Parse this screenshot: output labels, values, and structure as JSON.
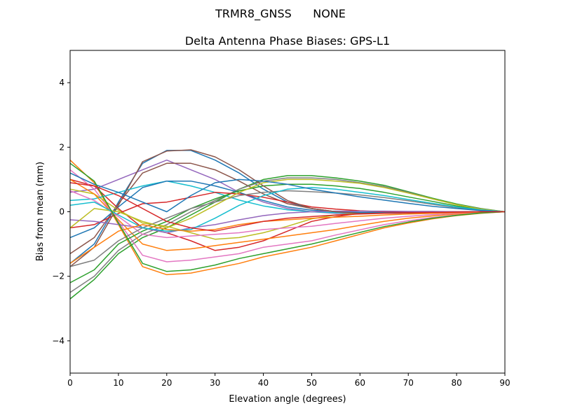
{
  "suptitle": "TRMR8_GNSS      NONE",
  "chart_data": {
    "type": "line",
    "title": "Delta Antenna Phase Biases: GPS-L1",
    "xlabel": "Elevation angle (degrees)",
    "ylabel": "Bias from mean (mm)",
    "xlim": [
      0,
      90
    ],
    "ylim": [
      -5,
      5
    ],
    "xticks": [
      0,
      10,
      20,
      30,
      40,
      50,
      60,
      70,
      80,
      90
    ],
    "yticks": [
      -4,
      -2,
      0,
      2,
      4
    ],
    "ytick_labels": [
      "−4",
      "−2",
      "0",
      "2",
      "4"
    ],
    "grid": false,
    "colors": [
      "#1f77b4",
      "#ff7f0e",
      "#2ca02c",
      "#d62728",
      "#9467bd",
      "#8c564b",
      "#e377c2",
      "#7f7f7f",
      "#bcbd22",
      "#17becf"
    ],
    "x": [
      0,
      5,
      10,
      15,
      20,
      25,
      30,
      35,
      40,
      45,
      50,
      55,
      60,
      65,
      70,
      75,
      80,
      85,
      90
    ],
    "series": [
      {
        "values": [
          -1.6,
          -1.0,
          0.3,
          1.5,
          1.9,
          1.9,
          1.6,
          1.2,
          0.7,
          0.3,
          0.1,
          0,
          -0.05,
          -0.05,
          -0.04,
          -0.03,
          -0.02,
          -0.01,
          0
        ]
      },
      {
        "values": [
          1.6,
          0.9,
          -0.4,
          -1.7,
          -1.95,
          -1.9,
          -1.75,
          -1.6,
          -1.4,
          -1.25,
          -1.1,
          -0.9,
          -0.7,
          -0.5,
          -0.35,
          -0.22,
          -0.12,
          -0.05,
          0
        ]
      },
      {
        "values": [
          -2.7,
          -2.1,
          -1.3,
          -0.8,
          -0.5,
          -0.1,
          0.3,
          0.7,
          1.0,
          1.12,
          1.12,
          1.05,
          0.95,
          0.82,
          0.62,
          0.42,
          0.24,
          0.1,
          0
        ]
      },
      {
        "values": [
          1.0,
          0.8,
          0.1,
          -0.5,
          -0.65,
          -0.9,
          -1.2,
          -1.1,
          -0.9,
          -0.6,
          -0.3,
          -0.15,
          -0.05,
          0,
          0,
          0,
          0,
          0,
          0
        ]
      },
      {
        "values": [
          0.6,
          0.7,
          1.0,
          1.3,
          1.6,
          1.3,
          1.0,
          0.6,
          0.3,
          0.1,
          0,
          -0.05,
          -0.05,
          -0.04,
          -0.03,
          -0.02,
          -0.01,
          0,
          0
        ]
      },
      {
        "values": [
          -1.3,
          -0.8,
          0.25,
          1.2,
          1.5,
          1.5,
          1.3,
          0.95,
          0.55,
          0.25,
          0.1,
          0,
          -0.04,
          -0.04,
          -0.03,
          -0.02,
          -0.02,
          -0.01,
          0
        ]
      },
      {
        "values": [
          1.3,
          0.7,
          -0.3,
          -1.35,
          -1.55,
          -1.5,
          -1.4,
          -1.3,
          -1.1,
          -1.0,
          -0.9,
          -0.72,
          -0.56,
          -0.4,
          -0.28,
          -0.18,
          -0.1,
          -0.04,
          0
        ]
      },
      {
        "values": [
          -2.5,
          -2.0,
          -1.2,
          -0.7,
          -0.4,
          0,
          0.35,
          0.7,
          0.95,
          1.05,
          1.05,
          1.0,
          0.9,
          0.78,
          0.6,
          0.4,
          0.22,
          0.09,
          0
        ]
      },
      {
        "values": [
          0.7,
          0.55,
          0.05,
          -0.35,
          -0.45,
          -0.65,
          -0.85,
          -0.8,
          -0.65,
          -0.45,
          -0.22,
          -0.1,
          -0.04,
          0,
          0,
          0,
          0,
          0,
          0
        ]
      },
      {
        "values": [
          0.35,
          0.4,
          0.6,
          0.8,
          0.95,
          0.8,
          0.6,
          0.36,
          0.18,
          0.06,
          0,
          -0.03,
          -0.03,
          -0.02,
          -0.02,
          -0.01,
          -0.01,
          0,
          0
        ]
      },
      {
        "values": [
          -0.8,
          -0.5,
          0.15,
          0.75,
          0.95,
          0.95,
          0.8,
          0.6,
          0.35,
          0.15,
          0.05,
          0,
          -0.02,
          -0.02,
          -0.02,
          -0.02,
          -0.01,
          0,
          0
        ]
      },
      {
        "values": [
          1.0,
          0.55,
          -0.25,
          -1.0,
          -1.2,
          -1.15,
          -1.05,
          -0.95,
          -0.85,
          -0.75,
          -0.65,
          -0.55,
          -0.42,
          -0.3,
          -0.2,
          -0.13,
          -0.07,
          -0.03,
          0
        ]
      },
      {
        "values": [
          -2.2,
          -1.8,
          -1.0,
          -0.6,
          -0.3,
          0.1,
          0.4,
          0.65,
          0.8,
          0.85,
          0.85,
          0.8,
          0.72,
          0.6,
          0.46,
          0.32,
          0.18,
          0.07,
          0
        ]
      },
      {
        "values": [
          -0.5,
          -0.4,
          -0.05,
          0.25,
          0.3,
          0.45,
          0.6,
          0.55,
          0.45,
          0.3,
          0.15,
          0.08,
          0.03,
          0,
          0,
          0,
          0,
          0,
          0
        ]
      },
      {
        "values": [
          -0.25,
          -0.3,
          -0.4,
          -0.5,
          -0.65,
          -0.5,
          -0.4,
          -0.25,
          -0.12,
          -0.04,
          0,
          0.02,
          0.02,
          0.02,
          0.01,
          0.01,
          0,
          0,
          0
        ]
      },
      {
        "values": [
          -1.7,
          -1.1,
          0.2,
          1.55,
          1.88,
          1.92,
          1.7,
          1.3,
          0.8,
          0.35,
          0.1,
          0,
          -0.05,
          -0.05,
          -0.04,
          -0.03,
          -0.02,
          -0.01,
          0
        ]
      },
      {
        "values": [
          0.65,
          0.35,
          -0.15,
          -0.7,
          -0.8,
          -0.75,
          -0.7,
          -0.65,
          -0.55,
          -0.5,
          -0.45,
          -0.36,
          -0.28,
          -0.2,
          -0.14,
          -0.09,
          -0.05,
          -0.02,
          0
        ]
      },
      {
        "values": [
          -1.7,
          -1.5,
          -0.9,
          -0.5,
          -0.2,
          0.1,
          0.3,
          0.5,
          0.6,
          0.65,
          0.62,
          0.58,
          0.52,
          0.44,
          0.34,
          0.23,
          0.13,
          0.05,
          0
        ]
      },
      {
        "values": [
          -0.5,
          0.1,
          0.0,
          -0.3,
          -0.5,
          -0.2,
          0.2,
          0.6,
          0.9,
          1.0,
          1.0,
          0.95,
          0.88,
          0.75,
          0.58,
          0.4,
          0.22,
          0.08,
          0
        ]
      },
      {
        "values": [
          0.2,
          0.3,
          -0.1,
          -0.5,
          -0.6,
          -0.55,
          -0.2,
          0.2,
          0.5,
          0.7,
          0.75,
          0.7,
          0.6,
          0.5,
          0.38,
          0.26,
          0.15,
          0.06,
          0
        ]
      },
      {
        "values": [
          1.2,
          0.85,
          0.6,
          0.3,
          0.0,
          0.5,
          0.9,
          1.0,
          0.95,
          0.85,
          0.7,
          0.58,
          0.46,
          0.36,
          0.26,
          0.17,
          0.1,
          0.04,
          0
        ]
      },
      {
        "values": [
          -1.6,
          -1.1,
          -0.6,
          -0.4,
          -0.55,
          -0.6,
          -0.55,
          -0.4,
          -0.3,
          -0.25,
          -0.2,
          -0.17,
          -0.14,
          -0.1,
          -0.07,
          -0.05,
          -0.03,
          -0.01,
          0
        ]
      },
      {
        "values": [
          1.5,
          0.95,
          -0.35,
          -1.6,
          -1.85,
          -1.8,
          -1.65,
          -1.45,
          -1.3,
          -1.15,
          -1.0,
          -0.82,
          -0.64,
          -0.46,
          -0.32,
          -0.2,
          -0.11,
          -0.04,
          0
        ]
      },
      {
        "values": [
          0.9,
          0.8,
          0.5,
          0.1,
          -0.3,
          -0.5,
          -0.6,
          -0.45,
          -0.3,
          -0.2,
          -0.15,
          -0.1,
          -0.07,
          -0.05,
          -0.03,
          -0.02,
          -0.01,
          0,
          0
        ]
      }
    ]
  }
}
